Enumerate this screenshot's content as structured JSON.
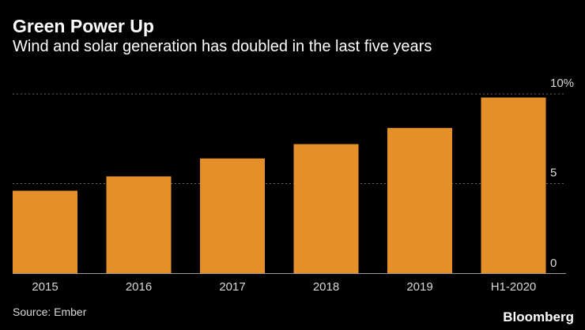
{
  "colors": {
    "background": "#000000",
    "bar": "#E48F28",
    "gridline": "#666666",
    "text": "#ffffff",
    "muted_text": "#d8d8d8"
  },
  "header": {
    "title": "Green Power Up",
    "subtitle": "Wind and solar generation has doubled in the last five years"
  },
  "footer": {
    "source": "Source: Ember",
    "brand": "Bloomberg"
  },
  "chart_data": {
    "type": "bar",
    "title": "Green Power Up",
    "subtitle": "Wind and solar generation has doubled in the last five years",
    "categories": [
      "2015",
      "2016",
      "2017",
      "2018",
      "2019",
      "H1-2020"
    ],
    "values": [
      4.6,
      5.4,
      6.4,
      7.2,
      8.1,
      9.8
    ],
    "xlabel": "",
    "ylabel": "",
    "ylim": [
      0,
      10
    ],
    "yticks": [
      0,
      5,
      10
    ],
    "ytick_labels": [
      "0",
      "5",
      "10%"
    ],
    "y_axis_side": "right",
    "grid": true,
    "legend": "none",
    "source": "Source: Ember"
  }
}
